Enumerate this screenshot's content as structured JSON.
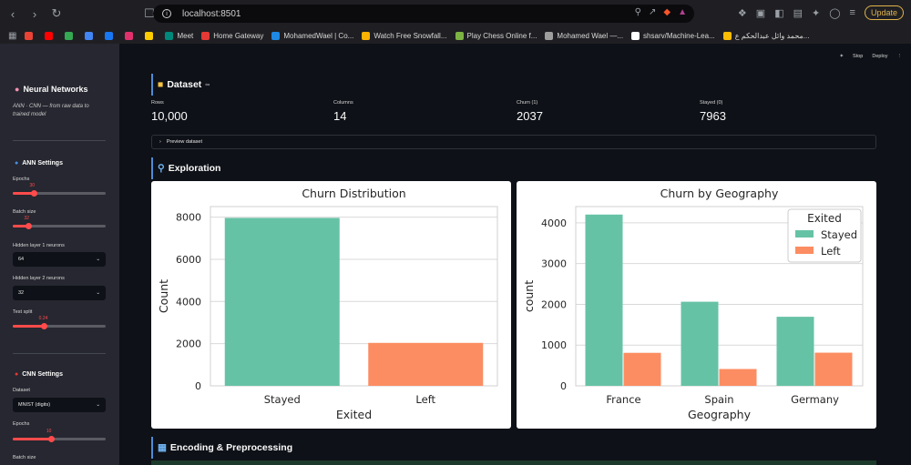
{
  "browser": {
    "url": "localhost:8501",
    "update_label": "Update",
    "bookmarks": [
      {
        "label": "",
        "color": "#ea4335"
      },
      {
        "label": "",
        "color": "#ff0000"
      },
      {
        "label": "",
        "color": "#34a853"
      },
      {
        "label": "",
        "color": "#4285f4"
      },
      {
        "label": "",
        "color": "#1877f2"
      },
      {
        "label": "",
        "color": "#e1306c"
      },
      {
        "label": "",
        "color": "#ffcc00"
      },
      {
        "label": "Meet",
        "color": "#00897b"
      },
      {
        "label": "Home Gateway",
        "color": "#e53935"
      },
      {
        "label": "MohamedWael | Co...",
        "color": "#1e88e5"
      },
      {
        "label": "Watch Free Snowfall...",
        "color": "#ffb300"
      },
      {
        "label": "Play Chess Online f...",
        "color": "#7cb342"
      },
      {
        "label": "Mohamed Wael —...",
        "color": "#9e9e9e"
      },
      {
        "label": "shsarv/Machine-Lea...",
        "color": "#ffffff"
      },
      {
        "label": "محمد وائل عبدالحكم ع...",
        "color": "#fbbc04"
      }
    ]
  },
  "app": {
    "stop_label": "Stop",
    "deploy_label": "Deploy"
  },
  "sidebar": {
    "title": "Neural Networks",
    "subtitle": "ANN · CNN — from raw data to trained model",
    "ann": {
      "title": "ANN Settings",
      "epochs_label": "Epochs",
      "epochs_value": "30",
      "epochs_fraction": 0.23,
      "batch_label": "Batch size",
      "batch_value": "32",
      "batch_fraction": 0.17,
      "hidden1_label": "Hidden layer 1 neurons",
      "hidden1_value": "64",
      "hidden2_label": "Hidden layer 2 neurons",
      "hidden2_value": "32",
      "test_label": "Test split",
      "test_value": "0.24",
      "test_fraction": 0.33
    },
    "cnn": {
      "title": "CNN Settings",
      "dataset_label": "Dataset",
      "dataset_value": "MNIST (digits)",
      "epochs_label": "Epochs",
      "epochs_value": "10",
      "epochs_fraction": 0.41,
      "batch_label": "Batch size"
    }
  },
  "dataset": {
    "heading": "Dataset",
    "metrics": [
      {
        "label": "Rows",
        "value": "10,000"
      },
      {
        "label": "Columns",
        "value": "14"
      },
      {
        "label": "Churn (1)",
        "value": "2037"
      },
      {
        "label": "Stayed (0)",
        "value": "7963"
      }
    ],
    "preview_label": "Preview dataset"
  },
  "exploration": {
    "heading": "Exploration"
  },
  "encoding": {
    "heading": "Encoding & Preprocessing"
  },
  "colors": {
    "stayed": "#66c2a5",
    "left": "#fc8d62"
  },
  "chart_data": [
    {
      "type": "bar",
      "title": "Churn Distribution",
      "xlabel": "Exited",
      "ylabel": "Count",
      "categories": [
        "Stayed",
        "Left"
      ],
      "values": [
        7963,
        2037
      ],
      "ylim": [
        0,
        8500
      ],
      "yticks": [
        0,
        2000,
        4000,
        6000,
        8000
      ],
      "grid": true
    },
    {
      "type": "bar",
      "title": "Churn by Geography",
      "xlabel": "Geography",
      "ylabel": "count",
      "categories": [
        "France",
        "Spain",
        "Germany"
      ],
      "series": [
        {
          "name": "Stayed",
          "values": [
            4204,
            2064,
            1695
          ]
        },
        {
          "name": "Left",
          "values": [
            810,
            413,
            814
          ]
        }
      ],
      "legend_title": "Exited",
      "legend_position": "top-right",
      "ylim": [
        0,
        4400
      ],
      "yticks": [
        0,
        1000,
        2000,
        3000,
        4000
      ],
      "grid": true
    }
  ]
}
